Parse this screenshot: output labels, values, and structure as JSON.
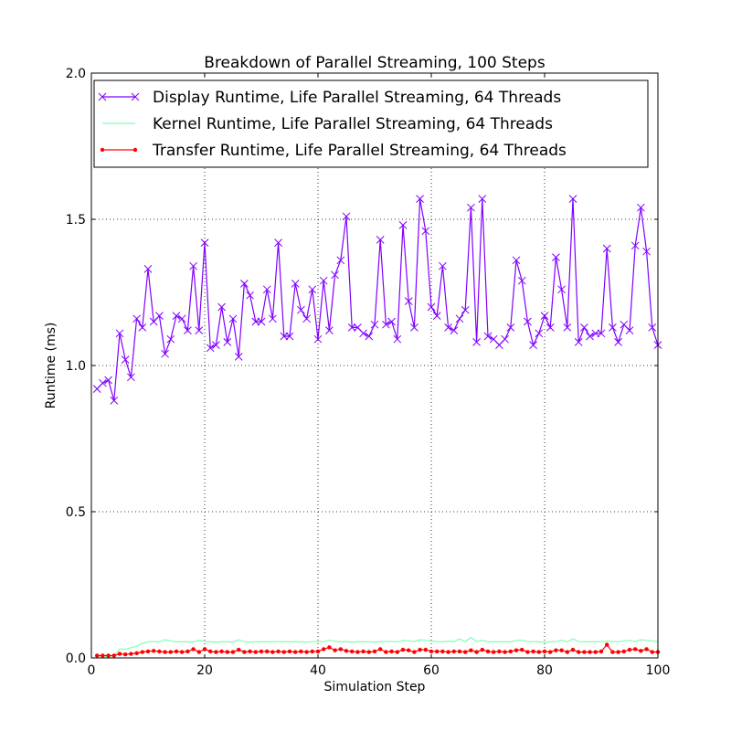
{
  "chart_data": {
    "type": "line",
    "title": "Breakdown of Parallel Streaming, 100 Steps",
    "xlabel": "Simulation Step",
    "ylabel": "Runtime (ms)",
    "xlim": [
      0,
      100
    ],
    "ylim": [
      0,
      2.0
    ],
    "xticks": [
      0,
      20,
      40,
      60,
      80,
      100
    ],
    "xtick_labels": [
      "0",
      "20",
      "40",
      "60",
      "80",
      "100"
    ],
    "yticks": [
      0,
      0.5,
      1.0,
      1.5,
      2.0
    ],
    "ytick_labels": [
      "0.0",
      "0.5",
      "1.0",
      "1.5",
      "2.0"
    ],
    "grid": true,
    "legend_position": "top",
    "x": [
      1,
      2,
      3,
      4,
      5,
      6,
      7,
      8,
      9,
      10,
      11,
      12,
      13,
      14,
      15,
      16,
      17,
      18,
      19,
      20,
      21,
      22,
      23,
      24,
      25,
      26,
      27,
      28,
      29,
      30,
      31,
      32,
      33,
      34,
      35,
      36,
      37,
      38,
      39,
      40,
      41,
      42,
      43,
      44,
      45,
      46,
      47,
      48,
      49,
      50,
      51,
      52,
      53,
      54,
      55,
      56,
      57,
      58,
      59,
      60,
      61,
      62,
      63,
      64,
      65,
      66,
      67,
      68,
      69,
      70,
      71,
      72,
      73,
      74,
      75,
      76,
      77,
      78,
      79,
      80,
      81,
      82,
      83,
      84,
      85,
      86,
      87,
      88,
      89,
      90,
      91,
      92,
      93,
      94,
      95,
      96,
      97,
      98,
      99,
      100
    ],
    "series": [
      {
        "name": "Display Runtime, Life Parallel Streaming, 64 Threads",
        "color": "#8000ff",
        "marker": "x",
        "values": [
          0.92,
          0.94,
          0.95,
          0.88,
          1.11,
          1.02,
          0.96,
          1.16,
          1.13,
          1.33,
          1.15,
          1.17,
          1.04,
          1.09,
          1.17,
          1.16,
          1.12,
          1.34,
          1.12,
          1.42,
          1.06,
          1.07,
          1.2,
          1.08,
          1.16,
          1.03,
          1.28,
          1.24,
          1.15,
          1.15,
          1.26,
          1.16,
          1.42,
          1.1,
          1.1,
          1.28,
          1.19,
          1.16,
          1.26,
          1.09,
          1.29,
          1.12,
          1.31,
          1.36,
          1.51,
          1.13,
          1.13,
          1.11,
          1.1,
          1.14,
          1.43,
          1.14,
          1.15,
          1.09,
          1.48,
          1.22,
          1.13,
          1.57,
          1.46,
          1.2,
          1.17,
          1.34,
          1.13,
          1.12,
          1.16,
          1.19,
          1.54,
          1.08,
          1.57,
          1.1,
          1.09,
          1.07,
          1.09,
          1.13,
          1.36,
          1.29,
          1.15,
          1.07,
          1.11,
          1.17,
          1.13,
          1.37,
          1.26,
          1.13,
          1.57,
          1.08,
          1.13,
          1.1,
          1.11,
          1.11,
          1.4,
          1.13,
          1.08,
          1.14,
          1.12,
          1.41,
          1.54,
          1.39,
          1.13,
          1.07
        ]
      },
      {
        "name": "Kernel Runtime, Life Parallel Streaming, 64 Threads",
        "color": "#80ffb4",
        "marker": "none",
        "values": [
          0.005,
          0.005,
          0.005,
          0.006,
          0.03,
          0.03,
          0.035,
          0.04,
          0.05,
          0.055,
          0.056,
          0.055,
          0.062,
          0.058,
          0.055,
          0.055,
          0.055,
          0.055,
          0.06,
          0.056,
          0.055,
          0.054,
          0.055,
          0.055,
          0.054,
          0.062,
          0.055,
          0.054,
          0.055,
          0.055,
          0.055,
          0.055,
          0.056,
          0.055,
          0.055,
          0.055,
          0.055,
          0.054,
          0.056,
          0.055,
          0.056,
          0.06,
          0.057,
          0.055,
          0.055,
          0.054,
          0.055,
          0.055,
          0.055,
          0.054,
          0.055,
          0.056,
          0.056,
          0.055,
          0.06,
          0.058,
          0.056,
          0.062,
          0.06,
          0.058,
          0.056,
          0.055,
          0.057,
          0.055,
          0.065,
          0.055,
          0.07,
          0.056,
          0.06,
          0.055,
          0.055,
          0.055,
          0.055,
          0.055,
          0.06,
          0.06,
          0.056,
          0.055,
          0.055,
          0.054,
          0.055,
          0.056,
          0.06,
          0.055,
          0.065,
          0.056,
          0.055,
          0.055,
          0.055,
          0.056,
          0.057,
          0.056,
          0.055,
          0.058,
          0.06,
          0.056,
          0.062,
          0.06,
          0.058,
          0.055
        ]
      },
      {
        "name": "Transfer Runtime, Life Parallel Streaming, 64 Threads",
        "color": "#ff0000",
        "marker": "dot",
        "values": [
          0.008,
          0.008,
          0.008,
          0.008,
          0.014,
          0.012,
          0.014,
          0.016,
          0.02,
          0.022,
          0.024,
          0.022,
          0.02,
          0.02,
          0.022,
          0.02,
          0.022,
          0.03,
          0.02,
          0.03,
          0.022,
          0.02,
          0.022,
          0.02,
          0.02,
          0.028,
          0.02,
          0.022,
          0.02,
          0.022,
          0.022,
          0.02,
          0.022,
          0.02,
          0.022,
          0.02,
          0.022,
          0.02,
          0.022,
          0.022,
          0.03,
          0.036,
          0.026,
          0.03,
          0.024,
          0.022,
          0.02,
          0.022,
          0.02,
          0.022,
          0.03,
          0.02,
          0.022,
          0.02,
          0.028,
          0.026,
          0.02,
          0.028,
          0.028,
          0.022,
          0.022,
          0.022,
          0.02,
          0.022,
          0.022,
          0.02,
          0.026,
          0.02,
          0.028,
          0.022,
          0.02,
          0.022,
          0.02,
          0.022,
          0.026,
          0.028,
          0.02,
          0.022,
          0.02,
          0.022,
          0.02,
          0.026,
          0.026,
          0.02,
          0.028,
          0.02,
          0.02,
          0.02,
          0.02,
          0.022,
          0.045,
          0.02,
          0.02,
          0.022,
          0.028,
          0.03,
          0.024,
          0.03,
          0.02,
          0.02
        ]
      }
    ]
  }
}
